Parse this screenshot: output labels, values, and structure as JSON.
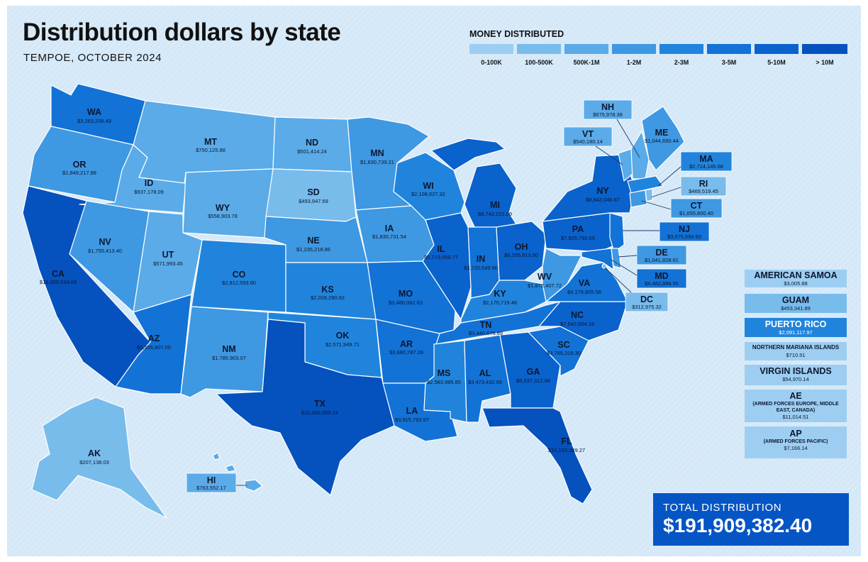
{
  "header": {
    "title": "Distribution dollars by state",
    "subtitle": "TEMPOE, OCTOBER 2024"
  },
  "legend": {
    "title": "MONEY DISTRIBUTED",
    "items": [
      {
        "label": "0-100K",
        "color": "#9dcef2"
      },
      {
        "label": "100-500K",
        "color": "#78bcec"
      },
      {
        "label": "500K-1M",
        "color": "#5aabe8"
      },
      {
        "label": "1-2M",
        "color": "#3e98e2"
      },
      {
        "label": "2-3M",
        "color": "#2184dc"
      },
      {
        "label": "3-5M",
        "color": "#1272d6"
      },
      {
        "label": "5-10M",
        "color": "#0a62cc"
      },
      {
        "label": "> 10M",
        "color": "#0552be"
      }
    ]
  },
  "states": [
    {
      "abbr": "WA",
      "value": "$3,283,206.49"
    },
    {
      "abbr": "OR",
      "value": "$1,849,217.88"
    },
    {
      "abbr": "CA",
      "value": "$18,909,534.69"
    },
    {
      "abbr": "ID",
      "value": "$937,178.09"
    },
    {
      "abbr": "NV",
      "value": "$1,755,413.40"
    },
    {
      "abbr": "MT",
      "value": "$750,125.88"
    },
    {
      "abbr": "WY",
      "value": "$558,903.78"
    },
    {
      "abbr": "UT",
      "value": "$571,993.45"
    },
    {
      "abbr": "AZ",
      "value": "$3,555,807.00"
    },
    {
      "abbr": "CO",
      "value": "$2,812,593.90"
    },
    {
      "abbr": "NM",
      "value": "$1,785,903.07"
    },
    {
      "abbr": "ND",
      "value": "$501,414.24"
    },
    {
      "abbr": "SD",
      "value": "$493,947.69"
    },
    {
      "abbr": "NE",
      "value": "$1,235,218.86"
    },
    {
      "abbr": "KS",
      "value": "$2,028,290.92"
    },
    {
      "abbr": "OK",
      "value": "$2,571,949.71"
    },
    {
      "abbr": "TX",
      "value": "$22,382,655.24"
    },
    {
      "abbr": "MN",
      "value": "$1,830,739.21"
    },
    {
      "abbr": "IA",
      "value": "$1,830,731.54"
    },
    {
      "abbr": "MO",
      "value": "$3,480,062.63"
    },
    {
      "abbr": "AR",
      "value": "$3,680,787.28"
    },
    {
      "abbr": "LA",
      "value": "$3,915,763.57"
    },
    {
      "abbr": "WI",
      "value": "$2,108,627.32"
    },
    {
      "abbr": "IL",
      "value": "$5,773,059.77"
    },
    {
      "abbr": "MI",
      "value": "$8,742,222.09"
    },
    {
      "abbr": "IN",
      "value": "$3,720,549.90"
    },
    {
      "abbr": "OH",
      "value": "$8,255,913.90"
    },
    {
      "abbr": "KY",
      "value": "$2,170,719.48"
    },
    {
      "abbr": "TN",
      "value": "$3,440,676.89"
    },
    {
      "abbr": "MS",
      "value": "$2,583,985.85"
    },
    {
      "abbr": "AL",
      "value": "$3,473,432.69"
    },
    {
      "abbr": "GA",
      "value": "$6,537,312.66"
    },
    {
      "abbr": "FL",
      "value": "$10,153,389.27"
    },
    {
      "abbr": "SC",
      "value": "$3,765,318.30"
    },
    {
      "abbr": "NC",
      "value": "$7,542,004.18"
    },
    {
      "abbr": "VA",
      "value": "$4,179,805.56"
    },
    {
      "abbr": "WV",
      "value": "$1,872,407.72"
    },
    {
      "abbr": "PA",
      "value": "$7,825,792.65"
    },
    {
      "abbr": "NY",
      "value": "$8,842,046.87"
    },
    {
      "abbr": "ME",
      "value": "$1,044,650.44"
    },
    {
      "abbr": "AK",
      "value": "$207,138.03"
    },
    {
      "abbr": "VT",
      "value": "$540,180.14"
    },
    {
      "abbr": "NH",
      "value": "$675,978.38"
    },
    {
      "abbr": "MA",
      "value": "$2,714,145.68"
    },
    {
      "abbr": "RI",
      "value": "$469,519.45"
    },
    {
      "abbr": "CT",
      "value": "$1,655,800.40"
    },
    {
      "abbr": "NJ",
      "value": "$3,675,694.93"
    },
    {
      "abbr": "DE",
      "value": "$1,041,828.61"
    },
    {
      "abbr": "MD",
      "value": "$4,482,888.55"
    },
    {
      "abbr": "DC",
      "value": "$312,975.32"
    },
    {
      "abbr": "HI",
      "value": "$763,552.17"
    }
  ],
  "territories": [
    {
      "name": "AMERICAN SAMOA",
      "sub": "",
      "value": "$3,005.88"
    },
    {
      "name": "GUAM",
      "sub": "",
      "value": "$453,341.89"
    },
    {
      "name": "PUERTO RICO",
      "sub": "",
      "value": "$2,091,117.97"
    },
    {
      "name": "NORTHERN MARIANA ISLANDS",
      "sub": "",
      "value": "$710.51"
    },
    {
      "name": "VIRGIN ISLANDS",
      "sub": "",
      "value": "$54,970.14"
    },
    {
      "name": "AE",
      "sub": "(ARMED FORCES EUROPE, MIDDLE EAST, CANADA)",
      "value": "$11,014.51"
    },
    {
      "name": "AP",
      "sub": "(ARMED FORCES PACIFIC)",
      "value": "$7,166.14"
    }
  ],
  "total": {
    "label": "TOTAL DISTRIBUTION",
    "value": "$191,909,382.40"
  }
}
